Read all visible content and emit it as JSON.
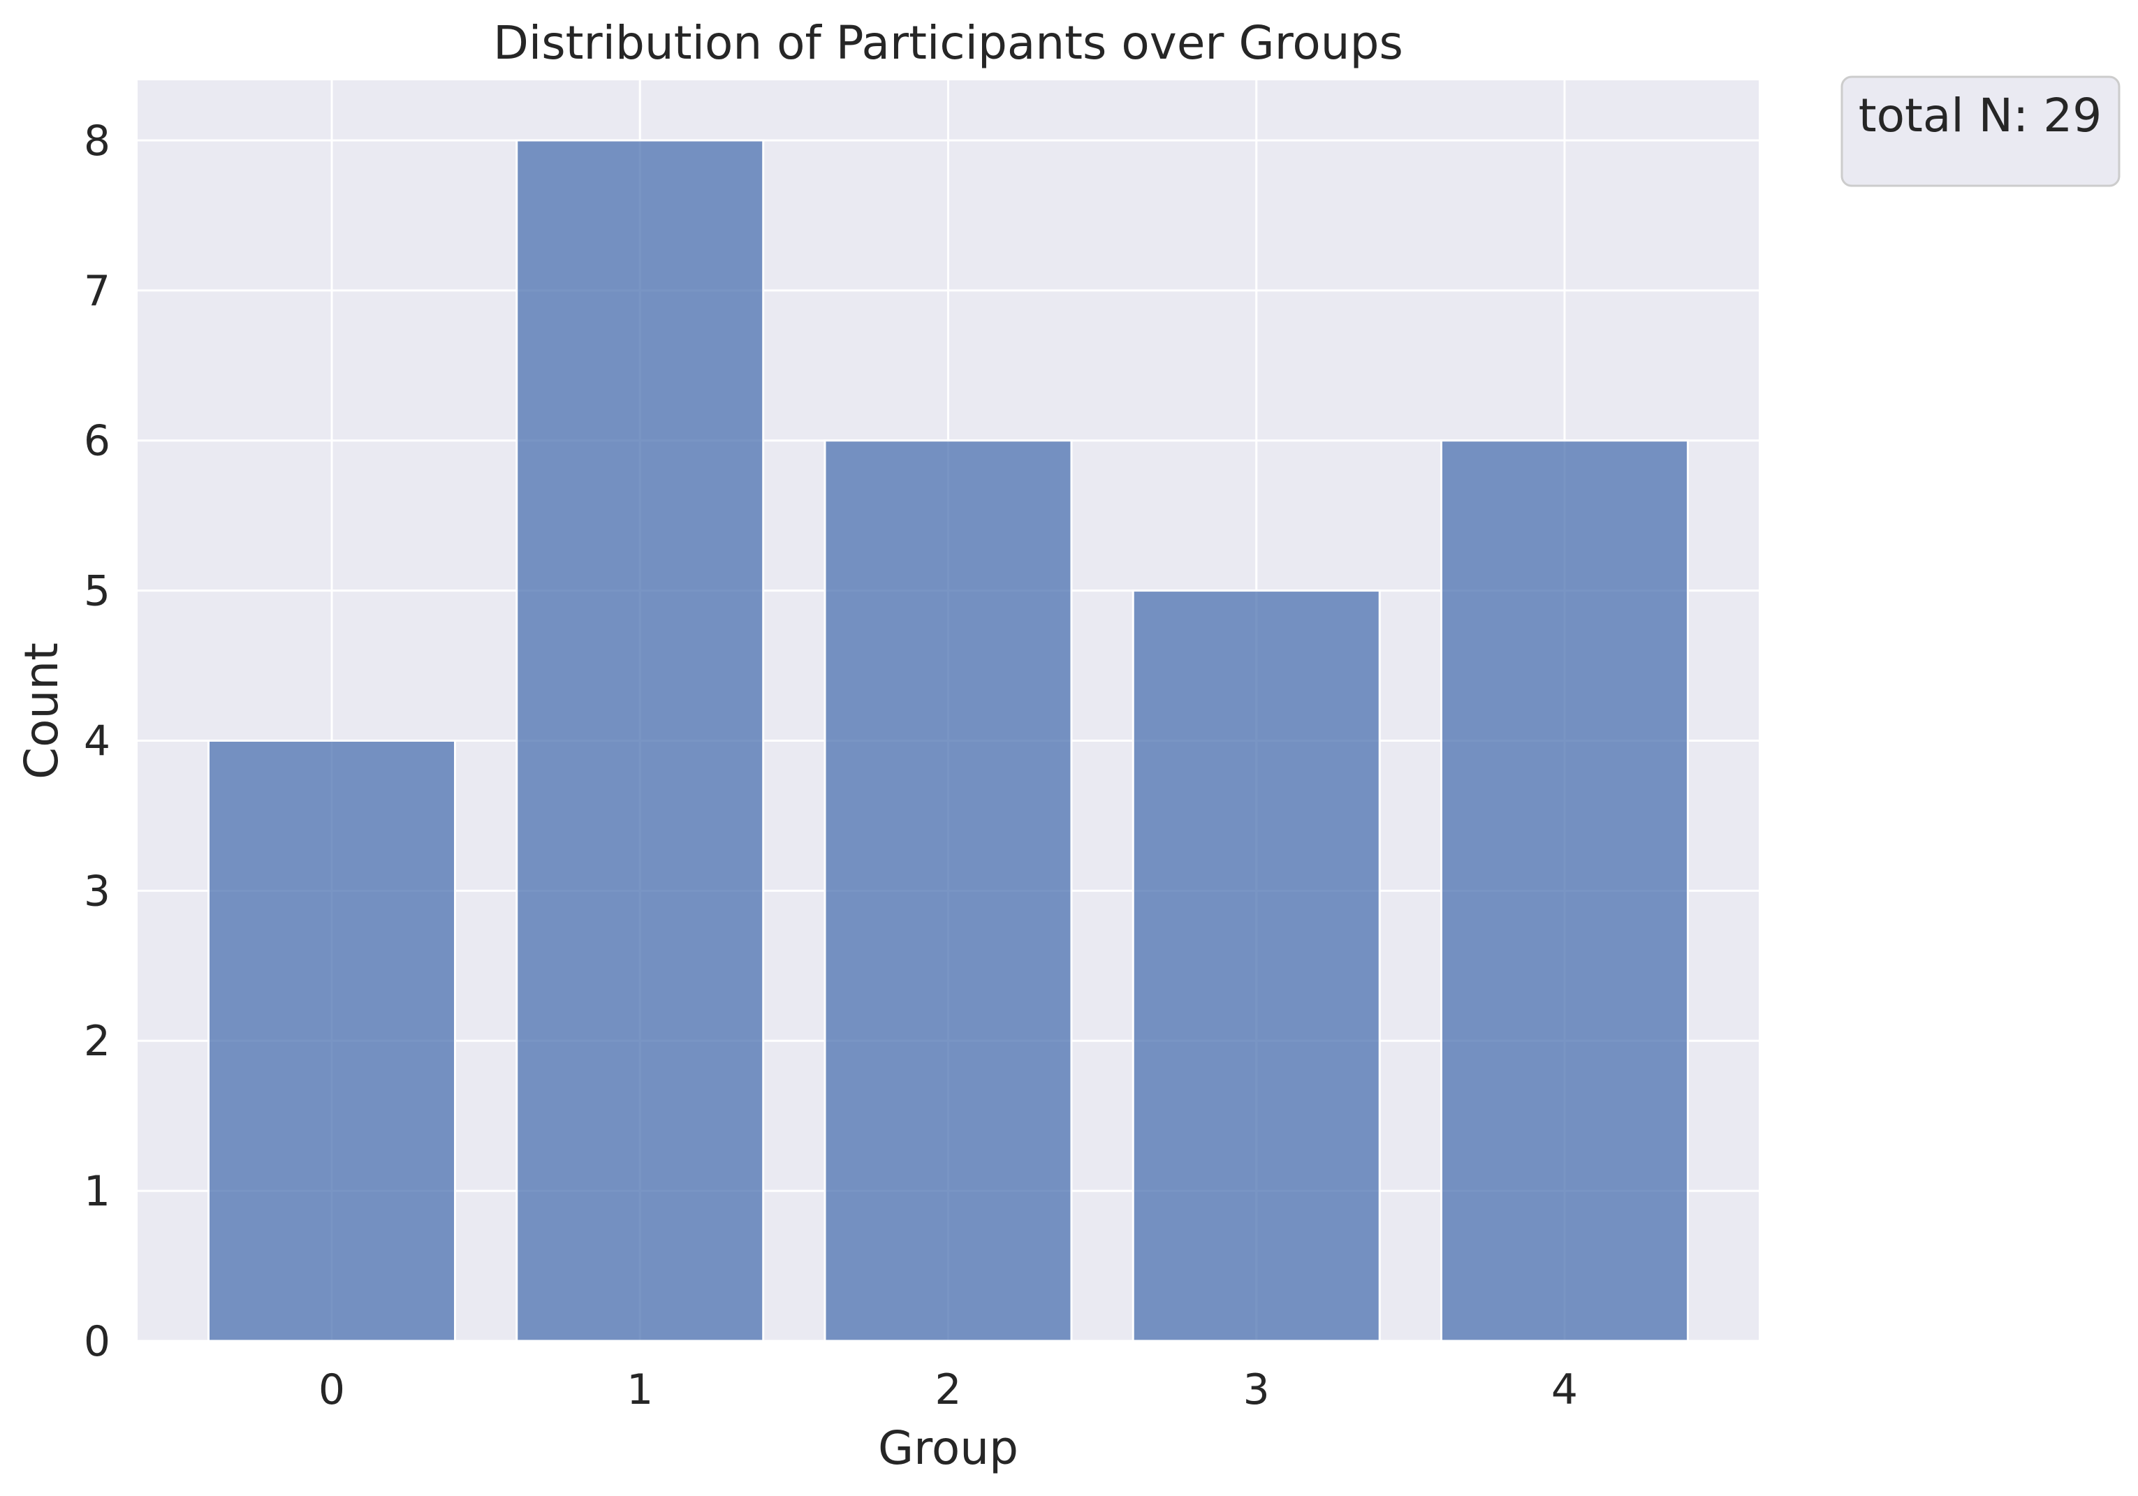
{
  "chart_data": {
    "type": "bar",
    "title": "Distribution of Participants over Groups",
    "xlabel": "Group",
    "ylabel": "Count",
    "categories": [
      "0",
      "1",
      "2",
      "3",
      "4"
    ],
    "values": [
      4,
      8,
      6,
      5,
      6
    ],
    "yticks": [
      "0",
      "1",
      "2",
      "3",
      "4",
      "5",
      "6",
      "7",
      "8"
    ],
    "ylim": [
      0,
      8.4
    ],
    "xlim": [
      -0.63,
      4.63
    ],
    "grid": true,
    "legend": {
      "placement": "outside-top-right",
      "text": "total N: 29"
    },
    "colors": {
      "bar": "#4c72b0",
      "plot_background": "#eaeaf2",
      "grid": "#ffffff",
      "text": "#262626"
    }
  }
}
